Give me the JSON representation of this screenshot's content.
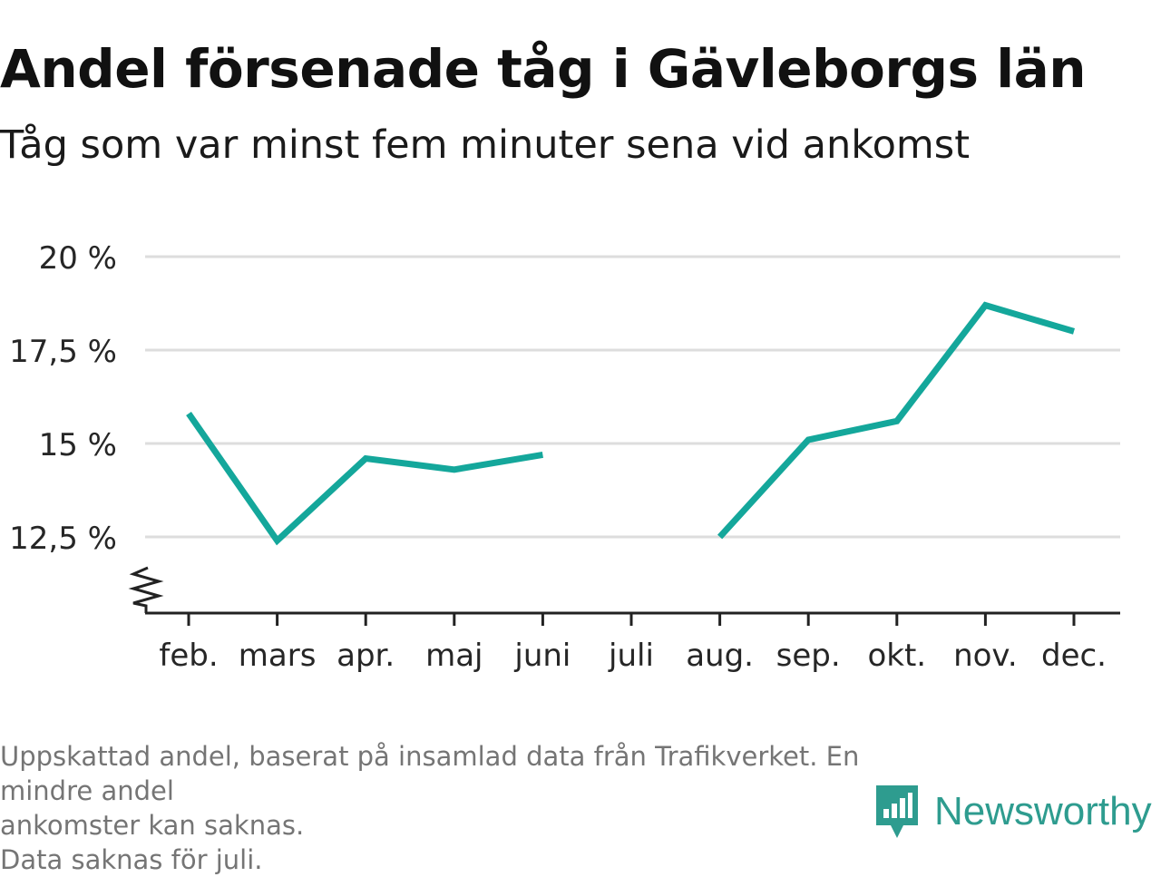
{
  "header": {
    "title": "Andel försenade tåg i Gävleborgs län",
    "subtitle": "Tåg som var minst fem minuter sena vid ankomst"
  },
  "footnote": {
    "lines": [
      "Uppskattad andel, baserat på insamlad data från Trafikverket. En mindre andel",
      "ankomster kan saknas.",
      "Data saknas för juli."
    ]
  },
  "brand": {
    "name": "Newsworthy",
    "icon": "newsworthy-logo-icon",
    "color": "#2e9c8f"
  },
  "chart_data": {
    "type": "line",
    "title": "Andel försenade tåg i Gävleborgs län",
    "subtitle": "Tåg som var minst fem minuter sena vid ankomst",
    "categories": [
      "feb.",
      "mars",
      "apr.",
      "maj",
      "juni",
      "juli",
      "aug.",
      "sep.",
      "okt.",
      "nov.",
      "dec."
    ],
    "series": [
      {
        "values": [
          15.8,
          12.4,
          14.6,
          14.3,
          14.7,
          null,
          12.5,
          15.1,
          15.6,
          18.7,
          18.0
        ],
        "color": "#14a79b"
      }
    ],
    "yticks": [
      12.5,
      15,
      17.5,
      20
    ],
    "ytick_labels": [
      "12,5 %",
      "15 %",
      "17,5 %",
      "20 %"
    ],
    "ylim": [
      10.5,
      20
    ],
    "y_axis_break": true,
    "grid": true,
    "gridline_color": "#dddddd",
    "axis_color": "#222222",
    "xlabel": "",
    "ylabel": "",
    "legend": "none"
  }
}
